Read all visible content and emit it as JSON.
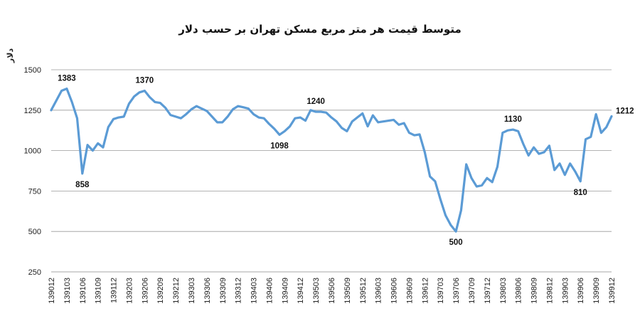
{
  "chart_data": {
    "type": "line",
    "title": "متوسط قیمت هر متر مربع مسکن تهران  بر حسب دلار",
    "ylabel": "دلار",
    "xlabel": "",
    "ylim": [
      250,
      1500
    ],
    "yticks": [
      250,
      500,
      750,
      1000,
      1250,
      1500
    ],
    "grid": true,
    "x_tick_labels": [
      "139012",
      "139103",
      "139106",
      "139109",
      "139112",
      "139203",
      "139206",
      "139209",
      "139212",
      "139303",
      "139306",
      "139309",
      "139312",
      "139403",
      "139406",
      "139409",
      "139412",
      "139503",
      "139506",
      "139509",
      "139512",
      "139603",
      "139606",
      "139609",
      "139612",
      "139703",
      "139706",
      "139709",
      "139712",
      "139803",
      "139806",
      "139809",
      "139812",
      "139903",
      "139906",
      "139909",
      "139912"
    ],
    "series": [
      {
        "color": "#5b9bd5",
        "values": [
          1250,
          1310,
          1370,
          1383,
          1300,
          1200,
          858,
          1035,
          1000,
          1045,
          1020,
          1145,
          1195,
          1205,
          1210,
          1290,
          1335,
          1360,
          1370,
          1330,
          1300,
          1295,
          1265,
          1220,
          1210,
          1200,
          1225,
          1255,
          1275,
          1260,
          1245,
          1210,
          1175,
          1175,
          1210,
          1255,
          1275,
          1268,
          1260,
          1225,
          1205,
          1200,
          1165,
          1135,
          1098,
          1120,
          1150,
          1200,
          1205,
          1185,
          1250,
          1240,
          1240,
          1235,
          1205,
          1180,
          1140,
          1120,
          1180,
          1205,
          1230,
          1150,
          1218,
          1175,
          1180,
          1185,
          1190,
          1160,
          1170,
          1110,
          1095,
          1100,
          990,
          840,
          810,
          700,
          600,
          540,
          500,
          630,
          915,
          830,
          778,
          785,
          830,
          805,
          900,
          1110,
          1125,
          1130,
          1120,
          1040,
          970,
          1020,
          980,
          990,
          1030,
          880,
          920,
          850,
          920,
          870,
          810,
          1070,
          1085,
          1225,
          1110,
          1145,
          1212
        ]
      }
    ],
    "data_labels": [
      {
        "index": 3,
        "text": "1383",
        "pos": "above"
      },
      {
        "index": 6,
        "text": "858",
        "pos": "below"
      },
      {
        "index": 18,
        "text": "1370",
        "pos": "above"
      },
      {
        "index": 44,
        "text": "1098",
        "pos": "below"
      },
      {
        "index": 51,
        "text": "1240",
        "pos": "above"
      },
      {
        "index": 78,
        "text": "500",
        "pos": "below"
      },
      {
        "index": 89,
        "text": "1130",
        "pos": "above"
      },
      {
        "index": 102,
        "text": "810",
        "pos": "below"
      },
      {
        "index": 108,
        "text": "1212",
        "pos": "right"
      }
    ]
  }
}
